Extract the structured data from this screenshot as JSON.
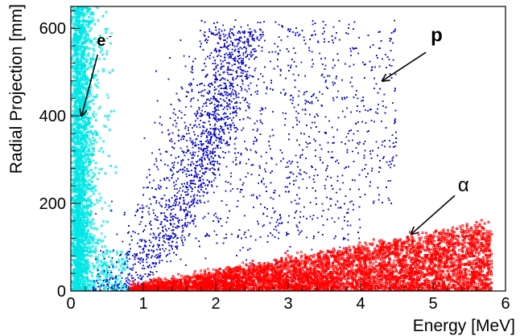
{
  "chart_data": {
    "type": "scatter",
    "title": "",
    "xlabel": "Energy [MeV]",
    "ylabel": "Radial Projection [mm]",
    "xlim": [
      0,
      6
    ],
    "ylim": [
      0,
      650
    ],
    "x_ticks": [
      0,
      1,
      2,
      3,
      4,
      5,
      6
    ],
    "y_ticks": [
      0,
      200,
      400,
      600
    ],
    "grid": false,
    "legend": "none",
    "series": [
      {
        "label": "e",
        "superscript": "-",
        "color": "#00e5e5",
        "marker": "circle",
        "region": {
          "x_center": 0.15,
          "x_spread": 0.12,
          "y_range": [
            0,
            650
          ]
        },
        "approx_points": 6000
      },
      {
        "label": "p",
        "color": "#1010c8",
        "marker": "dot",
        "region": {
          "x_range": [
            0.3,
            4.6
          ],
          "y_range": [
            0,
            640
          ],
          "shape": "band rising from (0.5, 0) to (2.5, 600), filling to (4.5, 500)"
        },
        "approx_points": 14000
      },
      {
        "label": "α",
        "color": "#ff0000",
        "marker": "square",
        "region": {
          "x_range": [
            0.8,
            5.8
          ],
          "y_range": [
            0,
            170
          ],
          "shape": "wedge rising with energy"
        },
        "approx_points": 9000
      }
    ],
    "annotations": [
      {
        "text": "e",
        "superscript": "-",
        "text_at": [
          0.42,
          560
        ],
        "arrow_from": [
          0.37,
          540
        ],
        "arrow_to": [
          0.15,
          400
        ]
      },
      {
        "text": "p",
        "text_at": [
          5.05,
          570
        ],
        "arrow_from": [
          4.9,
          545
        ],
        "arrow_to": [
          4.3,
          480
        ]
      },
      {
        "text": "α",
        "text_at": [
          5.42,
          228
        ],
        "arrow_from": [
          5.3,
          218
        ],
        "arrow_to": [
          4.7,
          130
        ]
      }
    ]
  }
}
